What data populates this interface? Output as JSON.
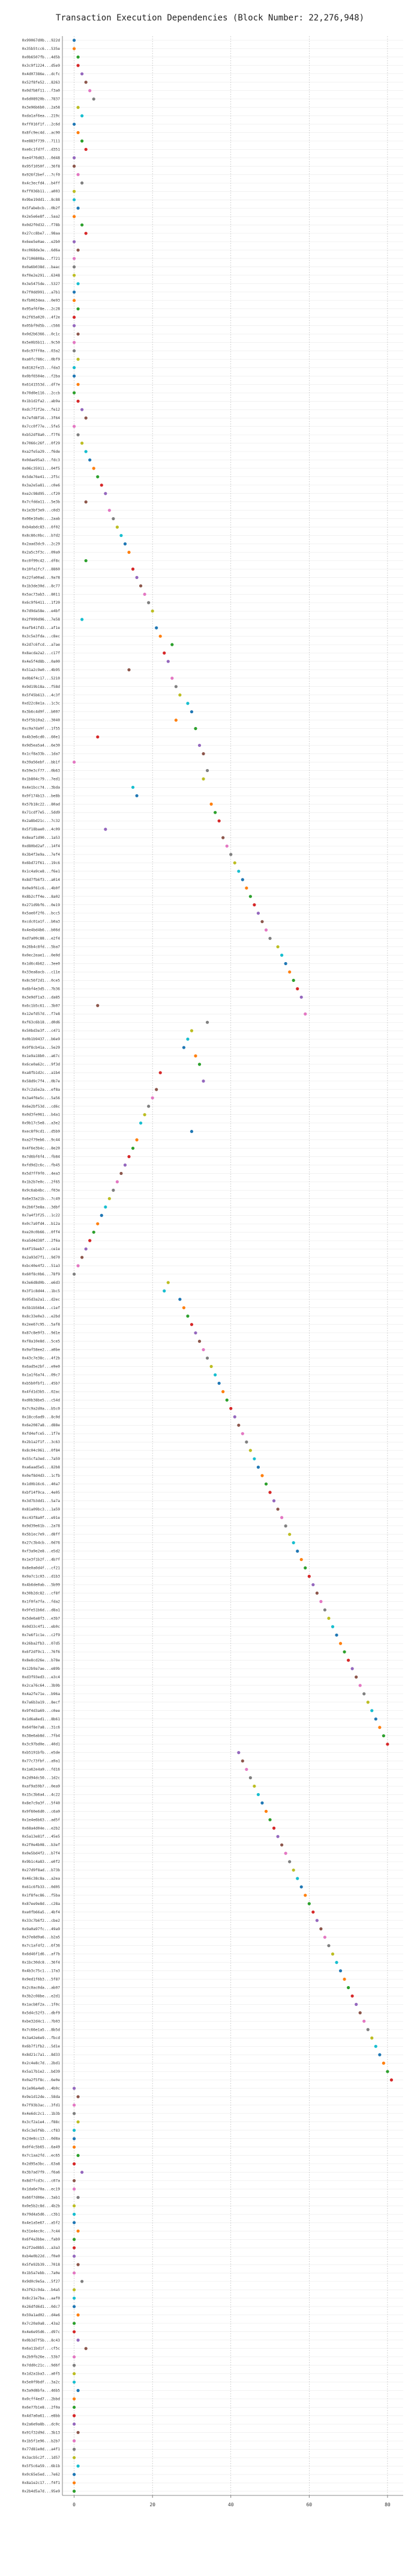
{
  "chart_data": {
    "type": "scatter",
    "title": "Transaction Execution Dependencies (Block Number: 22,276,948)",
    "xlim": [
      -3,
      84
    ],
    "xticks": [
      0,
      20,
      40,
      60,
      80
    ],
    "grid": true,
    "palette": [
      "#1f77b4",
      "#ff7f0e",
      "#2ca02c",
      "#d62728",
      "#9467bd",
      "#8c564b",
      "#e377c2",
      "#7f7f7f",
      "#bcbd22",
      "#17becf"
    ],
    "y_labels": [
      "0x99067d0b...922d",
      "0x35b5tcc6...535e",
      "0x0b6507fb...4d5b",
      "0x3c9f1224...d5e9",
      "0x4d07386e...dcfc",
      "0x52f8fe52...8263",
      "0x0d7b8f11...f3a0",
      "0x6d08920b...7837",
      "0x3e96b6b0...2a58",
      "0xda1af6ea...219c",
      "0xff016f1f...2c6d",
      "0x8fc9ec4d...ac90",
      "0xe883f739...7111",
      "0xe6c1fd7f...d351",
      "0xe4f76d63...0d48",
      "0x95f1050f...36f8",
      "0x926f2bef...7cf0",
      "0x4c3ecfd4...b4ff",
      "0xff036b11...a003",
      "0x9be19dd1...8c88",
      "0x5fabebcb...0b2f",
      "0x2e5e6e8f...5aa2",
      "0x0d2f0d32...f78b",
      "0x27cc8be7...98aa",
      "0x6ee5e0ae...e2b0",
      "0xc068de3e...6d6a",
      "0x7106808a...f721",
      "0x0a6b038d...baac",
      "0xf0e2e291...6348",
      "0x3e5475de...5327",
      "0x7f0dd991...a7b1",
      "0xfb0634ea...0e93",
      "0x95af6f8e...2c28",
      "0x2f65a020...4f2e",
      "0x05bf9d5b...c566",
      "0x0d2b6366...0c1c",
      "0x5e0b5b11...9c50",
      "0x6c97ff0a...03a2",
      "0xa0fc786c...0bf9",
      "0x8162fe15...fda3",
      "0x0bf6504e...f2ba",
      "0x6141553d...df7e",
      "0x70d0e116...2ccb",
      "0x1b1d2fa2...ab9a",
      "0xdc7f2f2e...fe12",
      "0x7efd8f16...3f64",
      "0x7cc0f77e...5fe5",
      "0xb52df8a0...f7f6",
      "0x7066c26f...0f29",
      "0xa2fe5a29...f6de",
      "0x0dae95a3...fdc3",
      "0x06c35911...04f5",
      "0x5de76e41...2f5c",
      "0x3a2e5a81...c0e6",
      "0xe2c98d95...cf20",
      "0x7cfdda11...5e3b",
      "0x1e3bf3e9...c0d3",
      "0x06e10a8c...2aab",
      "0xb4abdc83...6f02",
      "0x8c86c0bc...b7d2",
      "0x2aad3dc9...2c29",
      "0x2a5c3f3c...09a9",
      "0xc0f99c42...df8c",
      "0x10fa1fc7...8860",
      "0x22fa00ad...9a78",
      "0x1b3de30d...8c77",
      "0x5ac73ab3...8011",
      "0x6c9f6411...1f20",
      "0x7d9da58e...e4bf",
      "0x2f099d96...7e58",
      "0xefb41fd3...af1e",
      "0x3c5e3fda...c8ec",
      "0x2d7c6fcd...a7ae",
      "0x8acda2a2...c17f",
      "0x4e5f4d8b...0a00",
      "0x51a2c9e0...4b95",
      "0x0b6f4c17...5210",
      "0x9d19b18a...f58d",
      "0x5f45b613...4c3f",
      "0xd22c8e1a...1c3c",
      "0x3b6c4d9f...b007",
      "0x5f5b10a2...3040",
      "0xc9a7da9f...1f55",
      "0x4b3e6cd0...60e1",
      "0x9d5ea5a4...6e30",
      "0x1cf8a33b...1da7",
      "0x39a56ebf...bb1f",
      "0x59e3cf77...0b63",
      "0x1b804c79...7ed1",
      "0x4e1bcc74...3bda",
      "0x9f174b13...be8b",
      "0x57b18c22...80ad",
      "0x71cdf7e5...5dd9",
      "0x2a8bd21c...7c32",
      "0x5f18bae0...4c09",
      "0x8eaf1d90...1a53",
      "0xd80bd2af...14f4",
      "0x3b4f3e9a...7ef4",
      "0x6bd72f61...19c6",
      "0x1c4a9ce8...f6e1",
      "0x8d7fb6f3...a014",
      "0x0e9f61c6...4b0f",
      "0x8b2cff4e...8a02",
      "0x271d9bf6...0e19",
      "0x5ae6f2f6...bcc5",
      "0xcdc01a1f...b0a3",
      "0x4e4bd4b6...b06d",
      "0xd7a09c88...e2f4",
      "0x26b4c8fd...5ba7",
      "0x0ec2eae1...0e0d",
      "0x1d6c4b62...3ee0",
      "0x33ea8acb...c11e",
      "0x8c56f2d1...0ce5",
      "0x6bf4e3d5...7b36",
      "0x3e9df1a3...da85",
      "0x6c1b5c61...3b07",
      "0x12efd57d...f7e8",
      "0xf63c6b18...d0d6",
      "0x50bd3e3f...c471",
      "0x0b1b9437...b6e9",
      "0x9f8cb41a...5e29",
      "0x1e9a18b0...a67c",
      "0x6ce0a62c...9f3d",
      "0xa8fb1d2c...a1b4",
      "0x58d9c7f4...0b7e",
      "0x7c2a5e2a...ef8a",
      "0x3a4f6e5c...5a56",
      "0x6e2bf53d...cd6c",
      "0x0d3fe961...b4a1",
      "0x9b17c5e8...a3e2",
      "0xec8f9cd1...d5b9",
      "0xa2f79eb6...9c44",
      "0x4f6e3b4c...8e20",
      "0x7d6bf6f4...fb84",
      "0xfd9d2c6c...fb45",
      "0x5d7ff9f0...4ea3",
      "0x1b2b7e0c...2f65",
      "0x9c6ab4bc...f03e",
      "0x6e33a21b...7c49",
      "0x2b6f3e8a...3dbf",
      "0x7a4f3f25...1c22",
      "0x0c7a9fd4...b12a",
      "0xe20c0b66...0ff4",
      "0xa5d4d38f...2f6a",
      "0x4f19aeb7...ce1e",
      "0x2a93d7f1...9d70",
      "0xbc40e4f2...51a3",
      "0x60f8c0b6...78f9",
      "0x3e6d8d0b...e6d3",
      "0x3f1c8d44...1bc5",
      "0x95d3a2a1...d2ec",
      "0x5b1b56b4...c1ef",
      "0x8c33e0e3...e2bd",
      "0x2ee67c95...5af8",
      "0x87c8e9f3...9d1e",
      "0xf8a10e8d...5ce5",
      "0x9af58ee2...a0be",
      "0x43c7e38c...4f2b",
      "0x6ad5e2bf...e9e0",
      "0x1a1f6a74...09c7",
      "0xb5b0fbf1...45b7",
      "0x4fd1d3b5...02ac",
      "0xd0b38be5...c54d",
      "0x7c9a2d0a...b5c0",
      "0x18cc6ad9...8c0d",
      "0x6e2087a8...d88e",
      "0xfd4efce5...1f7e",
      "0x2b1a2f1f...3c63",
      "0x8c04c961...0f84",
      "0x55cfa3ed...7a59",
      "0xa6aad5e5...82b8",
      "0x0ef8d4d3...1cfb",
      "0x1d0b16c6...40a7",
      "0xbf14f9ca...4e05",
      "0x3d7b3dd1...5a7a",
      "0x81a09bc3...1a59",
      "0xc43f8a0f...e91e",
      "0x9d39e61b...2a78",
      "0x5b1ec7e9...d8ff",
      "0x27c3b4cb...0d76",
      "0xf3a9e2e8...e5d2",
      "0x1e3f1b2f...4b7f",
      "0x8e0a0d4f...cf21",
      "0x9a7c1c03...d1b3",
      "0x4b6de0ab...5b99",
      "0x30b2dc82...cf8f",
      "0x1f0fa7fa...fda2",
      "0x9fe51b6d...d8a1",
      "0x5de6a8f3...e3b7",
      "0x0d33c4f1...eb0c",
      "0x7e6f1c1e...c2f9",
      "0x26ba2fb3...07d5",
      "0x6f2df9c1...76f6",
      "0x8e8cd26e...b78e",
      "0x12b9a7ae...e89b",
      "0xd3f93ed3...e3c4",
      "0x2ca76c64...3b9b",
      "0x4a2fe71e...b96a",
      "0x7a6b3a19...8ecf",
      "0x9f4d3a69...c0ee",
      "0x1d6a8ed1...8b61",
      "0x64f8e7a8...31c6",
      "0x38e6ab8d...7fb4",
      "0x3c97bd0e...40d1",
      "0xb5191bfb...e5de",
      "0x77c73fbf...a9a1",
      "0x1a62e4a9...fd16",
      "0x2d94dc50...1d2c",
      "0xaf9a59b7...0ea9",
      "0x15c3b6a4...4c22",
      "0x8e7c9a3f...5f40",
      "0x9f60e6d0...c6a9",
      "0x1e4e6b63...ad5f",
      "0x68a4d04e...e2b2",
      "0x5a13e81f...45e5",
      "0x2f0e4b08...b3ef",
      "0x0e5bd4f2...b7f4",
      "0x9b1c4a83...e0f2",
      "0x27d9f8ad...b73b",
      "0x46c38c8a...a2ea",
      "0x61c6fb33...0d05",
      "0x1f8fec86...f5ba",
      "0x87ee9e8d...c28a",
      "0xe0fb66a5...4bf4",
      "0x33c7b6f2...cbe2",
      "0x9a0a97fc...49a9",
      "0x37e8d9a6...b2a5",
      "0x7c1af4f2...6f36",
      "0x6d46f1d6...af7b",
      "0x1bc30dc8...36f4",
      "0x4b3c75c1...17a3",
      "0x9ed1f6b3...5f87",
      "0x2c0ac0da...ab07",
      "0x3b2c08be...e2d1",
      "0x1acb8f2a...1f0c",
      "0x5d4c52f3...dbf9",
      "0xbe32d4c1...7b03",
      "0x7c66e1a5...8b5d",
      "0x3a42e6e9...fbcd",
      "0x6b7f1fb2...5d1e",
      "0x8d21c7a1...8d33",
      "0x2c4e8c7d...2bd1",
      "0x5a17b1e2...bd39",
      "0x0a2f5f8c...6e0e",
      "0x1e96a4e0...4b0c",
      "0x9e1d12de...58da",
      "0x7f93b3ac...3fd1",
      "0x4e6dc2c1...1b3b",
      "0x3cf2a1e4...f88c",
      "0x5c3e5f6b...cf83",
      "0x24e8cc13...0d8a",
      "0x0f4c5b65...6a49",
      "0x7c1aa2fd...ec65",
      "0x2d95a3bc...63a8",
      "0x3b7ad7f9...f6a6",
      "0x8d7fcd3c...c07a",
      "0x1da6e70a...ec19",
      "0x66f7d06e...3ab1",
      "0x0e5b2c8d...4b2b",
      "0x79d4a5d6...c3b1",
      "0x4e1a5e67...a5f2",
      "0x31e4ec0c...7c44",
      "0x6f4a3bbe...fab9",
      "0x2f2ed8b5...a3a3",
      "0xb4e0b22d...f0e0",
      "0x5fe92b39...7018",
      "0x1b5a7ebb...7a0e",
      "0x9d0c9e5a...5f27",
      "0x3f62c9da...b4a5",
      "0x8c21e7ba...aaf0",
      "0x26dfd6d1...0dc7",
      "0x59a1ad02...d4e6",
      "0x7c20a9a8...43a2",
      "0x4e6e95d6...d97c",
      "0x0b3d7f5b...8c43",
      "0x6a11bd1f...cf5c",
      "0x2b9fb26e...53b7",
      "0x7dd0c21c...9d6f",
      "0x1d2a1ba3...a0f5",
      "0x5e0f9bdf...3a2c",
      "0x3a9d8bfa...46b5",
      "0x0cff4ed7...2bbd",
      "0x6e77b1e8...2f0a",
      "0x4d7a0a61...e8bb",
      "0x2a6e9a8b...dc0c",
      "0x91f32d9d...3b13",
      "0x1b5f1e96...b2b7",
      "0x77d81e0d...a4f1",
      "0x3acb5c2f...1d57",
      "0x5f5c6a59...6b1b",
      "0x0c65e5ed...7e62",
      "0x8a1e2c17...f4f1",
      "0x2b4d5a7d...95e9"
    ],
    "x_values": [
      0,
      0,
      1,
      1,
      2,
      3,
      4,
      5,
      1,
      2,
      0,
      1,
      2,
      3,
      0,
      0,
      1,
      2,
      0,
      0,
      1,
      0,
      2,
      3,
      0,
      1,
      0,
      0,
      0,
      1,
      0,
      0,
      1,
      0,
      0,
      1,
      0,
      0,
      1,
      0,
      0,
      1,
      0,
      1,
      2,
      3,
      0,
      1,
      2,
      3,
      4,
      5,
      6,
      7,
      8,
      3,
      9,
      10,
      11,
      12,
      13,
      14,
      3,
      15,
      16,
      17,
      18,
      19,
      20,
      2,
      21,
      22,
      25,
      23,
      24,
      14,
      25,
      26,
      27,
      29,
      30,
      26,
      31,
      6,
      32,
      33,
      0,
      34,
      33,
      15,
      16,
      35,
      36,
      37,
      8,
      38,
      39,
      40,
      41,
      42,
      43,
      44,
      45,
      46,
      47,
      48,
      49,
      50,
      52,
      53,
      54,
      55,
      56,
      57,
      58,
      6,
      59,
      34,
      30,
      29,
      28,
      31,
      32,
      22,
      33,
      21,
      20,
      19,
      18,
      17,
      30,
      16,
      15,
      14,
      13,
      12,
      11,
      10,
      9,
      8,
      7,
      6,
      5,
      4,
      3,
      2,
      1,
      0,
      24,
      23,
      27,
      28,
      29,
      30,
      31,
      32,
      33,
      34,
      35,
      36,
      37,
      38,
      39,
      40,
      41,
      42,
      43,
      44,
      45,
      46,
      47,
      48,
      49,
      50,
      51,
      52,
      53,
      54,
      55,
      56,
      57,
      58,
      59,
      60,
      61,
      62,
      63,
      64,
      65,
      66,
      67,
      68,
      69,
      70,
      71,
      72,
      73,
      74,
      75,
      76,
      77,
      78,
      79,
      80,
      42,
      43,
      44,
      45,
      46,
      47,
      48,
      49,
      50,
      51,
      52,
      53,
      54,
      55,
      56,
      57,
      58,
      59,
      60,
      61,
      62,
      63,
      64,
      65,
      66,
      67,
      68,
      69,
      70,
      71,
      72,
      73,
      74,
      75,
      76,
      77,
      78,
      79,
      80,
      81,
      0,
      1,
      0,
      0,
      1,
      0,
      0,
      0,
      1,
      0,
      2,
      0,
      0,
      1,
      0,
      0,
      0,
      1,
      0,
      0,
      0,
      1,
      0,
      2,
      0,
      0,
      0,
      1,
      0,
      0,
      1,
      3,
      0,
      0,
      0,
      0,
      1,
      0,
      0,
      0,
      0,
      1,
      0,
      0,
      0,
      1,
      0,
      0,
      0,
      0,
      1,
      0,
      0,
      0,
      0,
      0,
      0,
      0,
      1,
      0,
      0,
      0,
      0,
      0,
      0,
      0,
      0,
      0,
      0,
      0,
      0,
      0,
      0,
      0,
      0,
      0,
      0,
      0,
      0,
      0,
      0,
      0,
      0,
      0,
      0,
      0,
      0,
      0,
      0,
      0
    ]
  }
}
